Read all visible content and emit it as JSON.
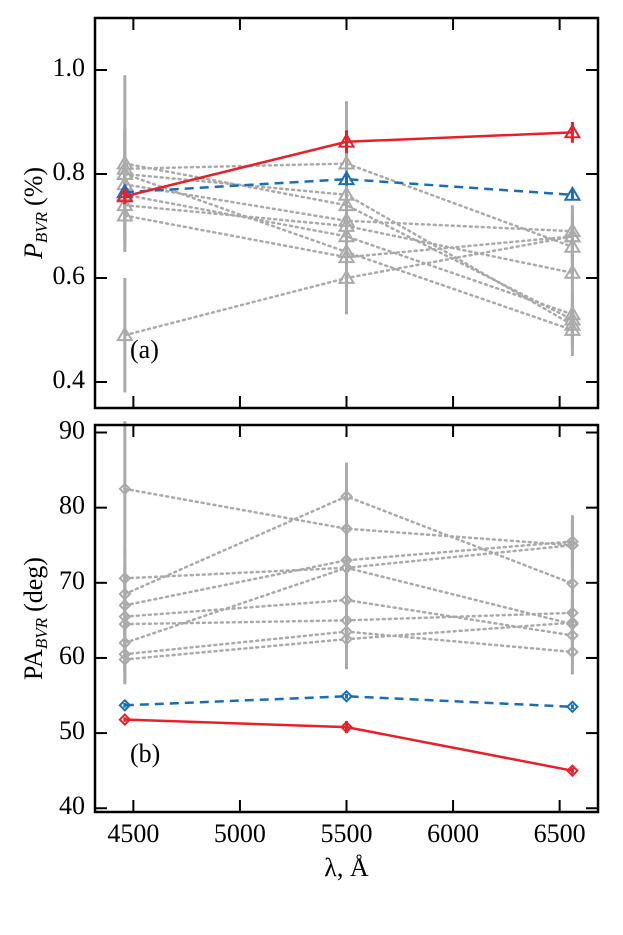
{
  "chart_data": [
    {
      "type": "line",
      "panel_label": "(a)",
      "ylabel": "P",
      "ylabel_sub": "BVR",
      "ylabel_unit": "(%)",
      "x": [
        4460,
        5500,
        6560
      ],
      "xlim": [
        4320,
        6680
      ],
      "xticks": [
        4500,
        5000,
        5500,
        6000,
        6500
      ],
      "ylim": [
        0.35,
        1.1
      ],
      "yticks": [
        0.4,
        0.6,
        0.8,
        {
          "value": 1,
          "label": "1.0"
        }
      ],
      "marker": "triangle",
      "series": [
        {
          "color": "#aaaaaa",
          "style": "dotted",
          "values": [
            0.82,
            0.74,
            0.52
          ],
          "errors": [
            0.17,
            0.12,
            0.05
          ]
        },
        {
          "color": "#aaaaaa",
          "style": "dotted",
          "values": [
            0.81,
            0.82,
            0.66
          ],
          "errors": [
            0.08,
            0.12,
            0.05
          ]
        },
        {
          "color": "#aaaaaa",
          "style": "dotted",
          "values": [
            0.8,
            0.76,
            0.51
          ],
          "errors": [
            0.08,
            0.1,
            0.05
          ]
        },
        {
          "color": "#aaaaaa",
          "style": "dotted",
          "values": [
            0.78,
            0.71,
            0.69
          ],
          "errors": [
            0.06,
            0.1,
            0.05
          ]
        },
        {
          "color": "#aaaaaa",
          "style": "dotted",
          "values": [
            0.76,
            0.68,
            0.53
          ],
          "errors": [
            0.06,
            0.1,
            0.05
          ]
        },
        {
          "color": "#aaaaaa",
          "style": "dotted",
          "values": [
            0.74,
            0.7,
            0.61
          ],
          "errors": [
            0.06,
            0.1,
            0.05
          ]
        },
        {
          "color": "#aaaaaa",
          "style": "dotted",
          "values": [
            0.72,
            0.64,
            0.68
          ],
          "errors": [
            0.06,
            0.1,
            0.05
          ]
        },
        {
          "color": "#aaaaaa",
          "style": "dotted",
          "values": [
            0.49,
            0.6,
            0.68
          ],
          "errors": [
            0.11,
            0.07,
            0.05
          ]
        },
        {
          "color": "#aaaaaa",
          "style": "dotted",
          "values": [
            0.8,
            0.65,
            0.5
          ],
          "errors": [
            0.06,
            0.1,
            0.05
          ]
        },
        {
          "color": "#1a6eb5",
          "style": "dashed",
          "values": [
            0.765,
            0.79,
            0.76
          ],
          "errors": [
            0.01,
            0.012,
            0.01
          ]
        },
        {
          "color": "#e8202a",
          "style": "solid",
          "values": [
            0.757,
            0.862,
            0.88
          ],
          "errors": [
            0.015,
            0.022,
            0.02
          ]
        }
      ]
    },
    {
      "type": "line",
      "panel_label": "(b)",
      "ylabel": "PA",
      "ylabel_sub": "BVR",
      "ylabel_unit": "(deg)",
      "xlabel": "λ, Å",
      "x": [
        4460,
        5500,
        6560
      ],
      "xlim": [
        4320,
        6680
      ],
      "xticks": [
        4500,
        5000,
        5500,
        6000,
        6500
      ],
      "ylim": [
        39.5,
        91
      ],
      "yticks": [
        40,
        50,
        60,
        70,
        80,
        90
      ],
      "marker": "diamond",
      "series": [
        {
          "color": "#aaaaaa",
          "style": "dotted",
          "values": [
            82.5,
            77.2,
            75.0
          ],
          "errors": [
            9,
            5,
            4
          ]
        },
        {
          "color": "#aaaaaa",
          "style": "dotted",
          "values": [
            70.6,
            72.0,
            64.5
          ],
          "errors": [
            4,
            6,
            3
          ]
        },
        {
          "color": "#aaaaaa",
          "style": "dotted",
          "values": [
            68.5,
            81.5,
            69.9
          ],
          "errors": [
            4,
            4.5,
            3
          ]
        },
        {
          "color": "#aaaaaa",
          "style": "dotted",
          "values": [
            67.0,
            73.0,
            75.5
          ],
          "errors": [
            4,
            4,
            3
          ]
        },
        {
          "color": "#aaaaaa",
          "style": "dotted",
          "values": [
            65.5,
            67.7,
            63.0
          ],
          "errors": [
            4,
            4,
            3
          ]
        },
        {
          "color": "#aaaaaa",
          "style": "dotted",
          "values": [
            64.5,
            65.0,
            66.0
          ],
          "errors": [
            4,
            4,
            3
          ]
        },
        {
          "color": "#aaaaaa",
          "style": "dotted",
          "values": [
            62.0,
            72.0,
            75.0
          ],
          "errors": [
            4,
            4,
            3
          ]
        },
        {
          "color": "#aaaaaa",
          "style": "dotted",
          "values": [
            60.5,
            63.5,
            60.8
          ],
          "errors": [
            4,
            4,
            3
          ]
        },
        {
          "color": "#aaaaaa",
          "style": "dotted",
          "values": [
            59.8,
            62.5,
            64.7
          ],
          "errors": [
            3,
            4,
            3
          ]
        },
        {
          "color": "#1a6eb5",
          "style": "dashed",
          "values": [
            53.7,
            54.9,
            53.5
          ],
          "errors": [
            0.3,
            0.3,
            0.3
          ]
        },
        {
          "color": "#e8202a",
          "style": "solid",
          "values": [
            51.8,
            50.8,
            45.0
          ],
          "errors": [
            0.3,
            0.8,
            0.4
          ]
        }
      ]
    }
  ]
}
